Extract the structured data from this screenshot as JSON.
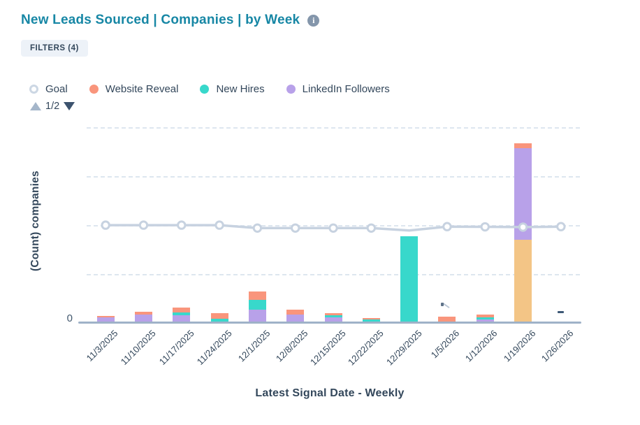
{
  "header": {
    "title": "New Leads Sourced | Companies | by Week",
    "filters_label": "FILTERS (4)"
  },
  "legend": {
    "page_indicator": "1/2",
    "items": [
      {
        "label": "Goal",
        "marker": "ring",
        "color": "#ccd7e4"
      },
      {
        "label": "Website Reveal",
        "marker": "dot",
        "color": "#f9957c"
      },
      {
        "label": "New Hires",
        "marker": "dot",
        "color": "#38d8cb"
      },
      {
        "label": "LinkedIn Followers",
        "marker": "dot",
        "color": "#b8a1e9"
      }
    ]
  },
  "chart_data": {
    "type": "bar",
    "stacked": true,
    "title": "",
    "xlabel": "Latest Signal Date - Weekly",
    "ylabel": "(Count) companies",
    "y_tick_labels": [
      "0"
    ],
    "y_scale_note": "Only 0 is labeled; 4 unlabeled dashed gridlines; values estimated in units of 1 gridline interval = 10",
    "ylim": [
      0,
      41.7
    ],
    "grid": "horizontal-dashed",
    "gridline_values": [
      10,
      20,
      30,
      40
    ],
    "legend_position": "top",
    "categories": [
      "11/3/2025",
      "11/10/2025",
      "11/17/2025",
      "11/24/2025",
      "12/1/2025",
      "12/8/2025",
      "12/15/2025",
      "12/22/2025",
      "12/29/2025",
      "1/5/2026",
      "1/12/2026",
      "1/19/2026",
      "1/26/2026"
    ],
    "series": [
      {
        "name": "Website Reveal",
        "color": "#f9957c",
        "values": [
          0.3,
          0.6,
          1.0,
          1.1,
          1.7,
          1.0,
          0.45,
          0.25,
          0,
          1.0,
          0.7,
          1.0,
          0
        ]
      },
      {
        "name": "New Hires",
        "color": "#38d8cb",
        "values": [
          0,
          0,
          0.6,
          0.55,
          1.9,
          0,
          0.45,
          0.5,
          17.4,
          0,
          0.35,
          0,
          0
        ]
      },
      {
        "name": "LinkedIn Followers",
        "color": "#b8a1e9",
        "values": [
          0.85,
          1.4,
          1.3,
          0,
          2.5,
          1.4,
          0.85,
          0,
          0,
          0,
          0.45,
          18.7,
          0
        ]
      },
      {
        "name": "(unlabeled series — legend page 2/2)",
        "color": "#f3c586",
        "values": [
          0,
          0,
          0,
          0,
          0,
          0,
          0,
          0,
          0,
          0,
          0,
          16.7,
          0
        ]
      }
    ],
    "stack_order_bottom_to_top": [
      "(unlabeled series — legend page 2/2)",
      "LinkedIn Followers",
      "New Hires",
      "Website Reveal"
    ],
    "goal_line": {
      "name": "Goal",
      "color": "#c7d2e0",
      "values": [
        19.7,
        19.7,
        19.7,
        19.7,
        19.1,
        19.1,
        19.1,
        19.1,
        18.6,
        19.4,
        19.35,
        19.3,
        19.4
      ],
      "marker_hidden_at": [
        "12/29/2025"
      ]
    },
    "null_marker": {
      "category": "1/26/2026",
      "symbol": "-"
    }
  }
}
